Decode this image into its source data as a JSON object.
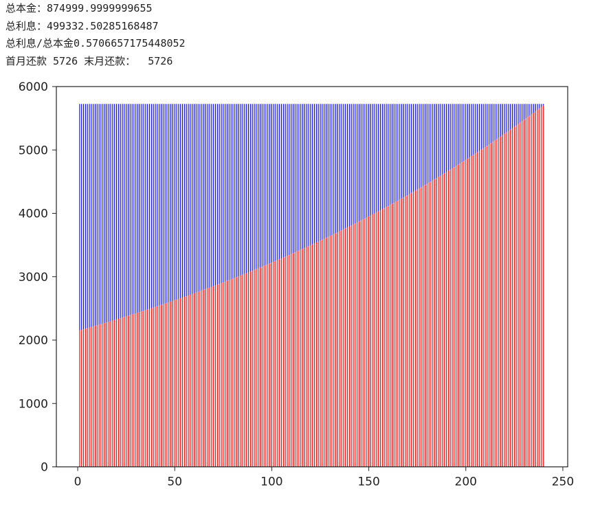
{
  "output_lines": {
    "total_principal": "总本金：874999.9999999655",
    "total_interest": "总利息：499332.50285168487",
    "ratio": "总利息/总本金0.5706657175448052",
    "payments": "首月还款 5726 末月还款：  5726"
  },
  "chart_data": {
    "type": "bar",
    "stacked": true,
    "title": "",
    "xlabel": "",
    "ylabel": "",
    "xlim": [
      -11,
      252.5
    ],
    "ylim": [
      0,
      6000
    ],
    "xticks": [
      "0",
      "50",
      "100",
      "150",
      "200",
      "250"
    ],
    "yticks": [
      "0",
      "1000",
      "2000",
      "3000",
      "4000",
      "5000",
      "6000"
    ],
    "grid": false,
    "x_start": 1,
    "monthly_payment": 5726,
    "colors": {
      "principal": "#ff0000",
      "interest": "#0000ff"
    },
    "principal": [
      2153,
      2162,
      2171,
      2180,
      2189,
      2197,
      2206,
      2215,
      2224,
      2234,
      2243,
      2252,
      2261,
      2270,
      2280,
      2289,
      2298,
      2308,
      2317,
      2326,
      2336,
      2345,
      2355,
      2365,
      2374,
      2384,
      2394,
      2404,
      2413,
      2423,
      2433,
      2443,
      2453,
      2463,
      2473,
      2483,
      2493,
      2504,
      2514,
      2524,
      2534,
      2545,
      2555,
      2566,
      2576,
      2587,
      2597,
      2608,
      2618,
      2629,
      2640,
      2651,
      2661,
      2672,
      2683,
      2694,
      2705,
      2716,
      2727,
      2738,
      2750,
      2761,
      2772,
      2783,
      2795,
      2806,
      2818,
      2829,
      2841,
      2852,
      2864,
      2876,
      2887,
      2899,
      2911,
      2923,
      2935,
      2947,
      2959,
      2971,
      2983,
      2995,
      3007,
      3020,
      3032,
      3044,
      3057,
      3069,
      3082,
      3095,
      3107,
      3120,
      3133,
      3145,
      3158,
      3171,
      3184,
      3197,
      3210,
      3223,
      3236,
      3250,
      3263,
      3276,
      3290,
      3303,
      3316,
      3330,
      3344,
      3357,
      3371,
      3385,
      3399,
      3413,
      3427,
      3440,
      3455,
      3469,
      3483,
      3497,
      3511,
      3526,
      3540,
      3554,
      3569,
      3584,
      3598,
      3613,
      3628,
      3642,
      3657,
      3672,
      3687,
      3702,
      3718,
      3733,
      3748,
      3763,
      3779,
      3794,
      3810,
      3825,
      3841,
      3856,
      3872,
      3888,
      3904,
      3920,
      3936,
      3952,
      3968,
      3984,
      4000,
      4017,
      4033,
      4050,
      4066,
      4083,
      4099,
      4116,
      4133,
      4150,
      4167,
      4184,
      4201,
      4218,
      4235,
      4253,
      4270,
      4287,
      4305,
      4323,
      4340,
      4358,
      4376,
      4394,
      4412,
      4430,
      4448,
      4466,
      4484,
      4502,
      4521,
      4539,
      4558,
      4576,
      4595,
      4614,
      4633,
      4652,
      4671,
      4690,
      4709,
      4728,
      4747,
      4767,
      4786,
      4806,
      4825,
      4845,
      4865,
      4885,
      4905,
      4925,
      4945,
      4965,
      4985,
      5006,
      5026,
      5047,
      5067,
      5088,
      5109,
      5130,
      5150,
      5172,
      5193,
      5214,
      5235,
      5256,
      5278,
      5300,
      5321,
      5343,
      5365,
      5387,
      5409,
      5431,
      5453,
      5475,
      5498,
      5520,
      5543,
      5565,
      5588,
      5611,
      5634,
      5657,
      5680,
      5703
    ]
  }
}
